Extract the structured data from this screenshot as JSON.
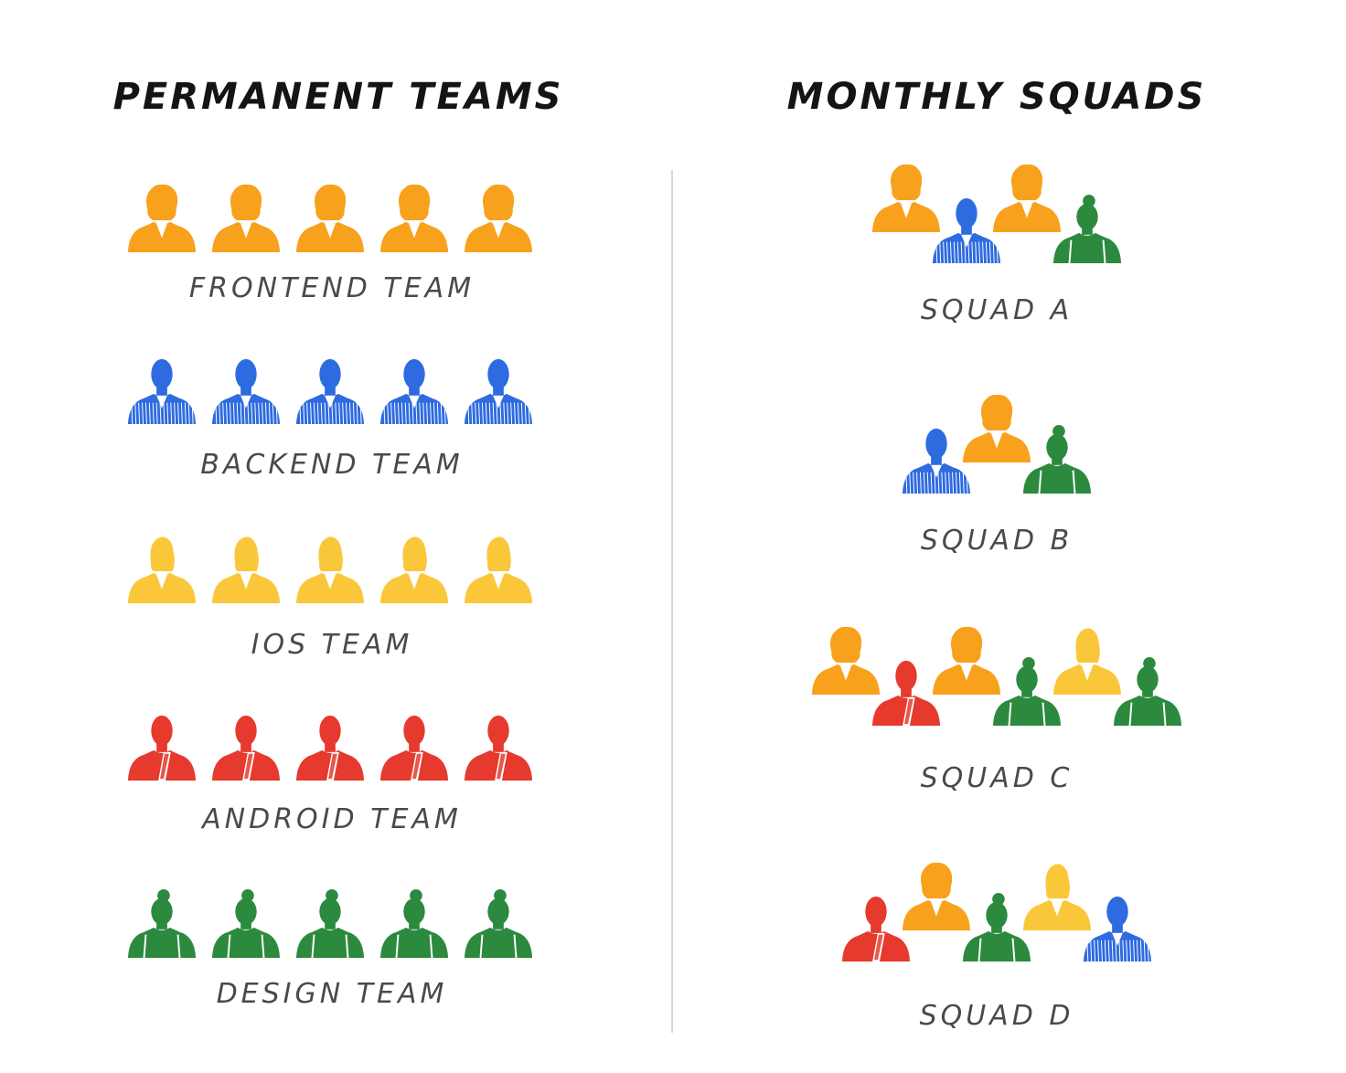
{
  "headings": {
    "left": "PERMANENT TEAMS",
    "right": "MONTHLY SQUADS"
  },
  "colors": {
    "frontend": "#F8A11C",
    "backend": "#2E6BE0",
    "ios": "#FBC73A",
    "android": "#E53A2D",
    "design": "#2C8A3E"
  },
  "teams": [
    {
      "label": "FRONTEND TEAM",
      "role": "frontend",
      "members": 5
    },
    {
      "label": "BACKEND TEAM",
      "role": "backend",
      "members": 5
    },
    {
      "label": "IOS TEAM",
      "role": "ios",
      "members": 5
    },
    {
      "label": "ANDROID TEAM",
      "role": "android",
      "members": 5
    },
    {
      "label": "DESIGN TEAM",
      "role": "design",
      "members": 5
    }
  ],
  "squads": [
    {
      "label": "SQUAD A",
      "members": [
        "frontend",
        "backend",
        "frontend",
        "design"
      ]
    },
    {
      "label": "SQUAD B",
      "members": [
        "backend",
        "frontend",
        "design"
      ]
    },
    {
      "label": "SQUAD C",
      "members": [
        "frontend",
        "android",
        "frontend",
        "design",
        "ios",
        "design"
      ]
    },
    {
      "label": "SQUAD D",
      "members": [
        "android",
        "frontend",
        "design",
        "ios",
        "backend"
      ]
    }
  ],
  "icons": {
    "frontend": "person-curly-hair-icon",
    "backend": "person-striped-shirt-icon",
    "ios": "person-ponytail-icon",
    "android": "person-tie-icon",
    "design": "person-bun-suspenders-icon"
  }
}
